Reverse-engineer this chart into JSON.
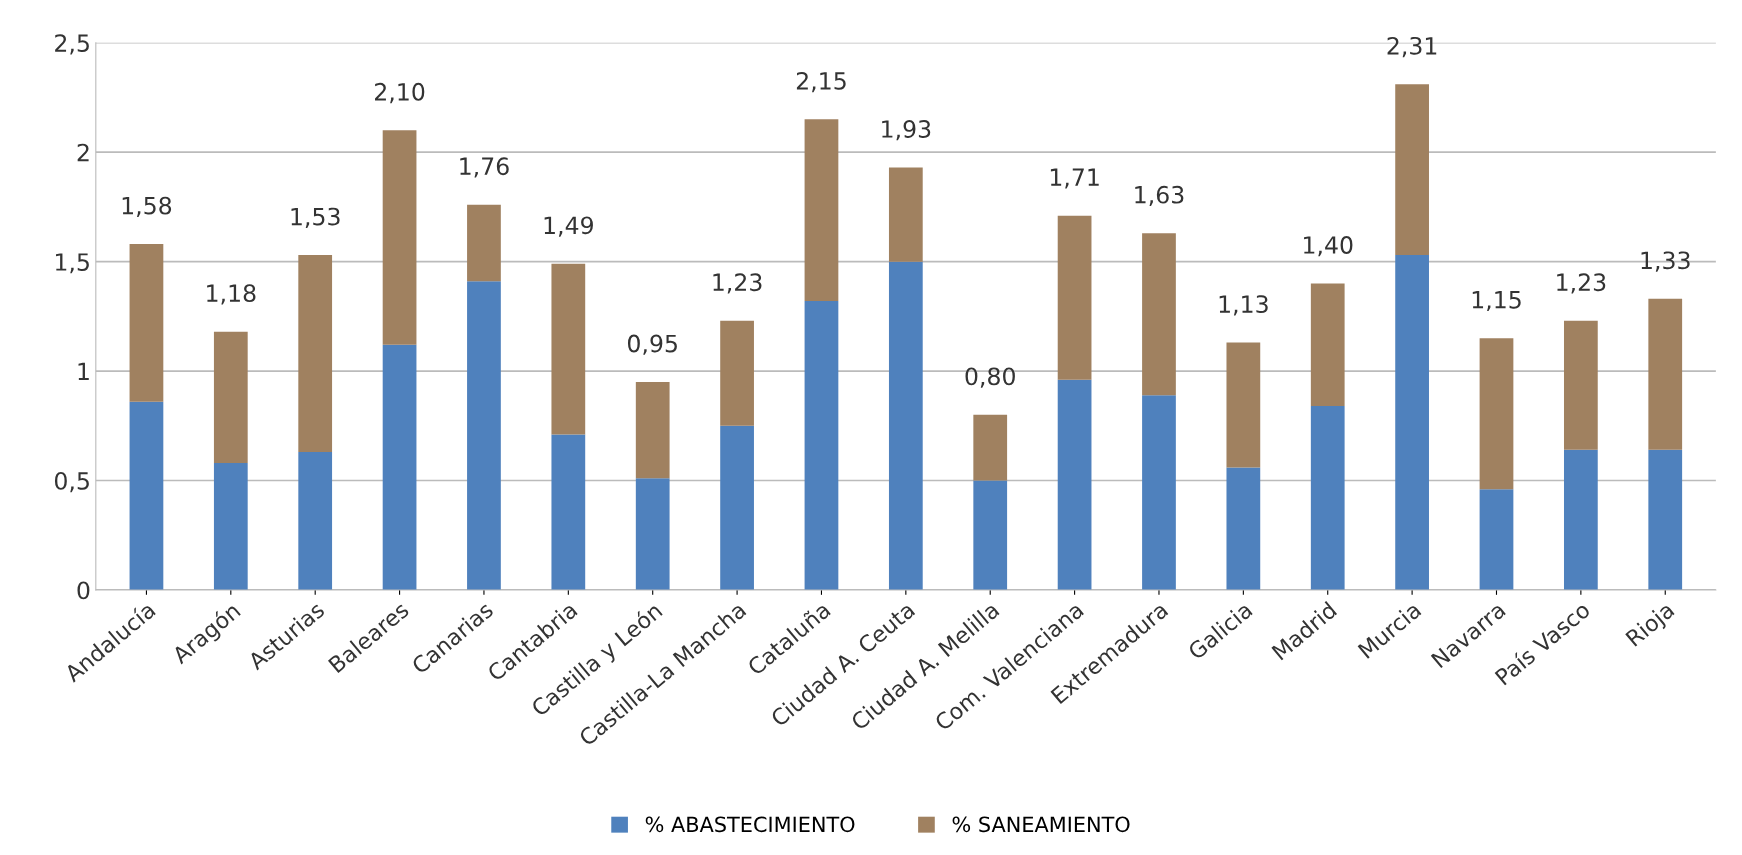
{
  "chart_data": {
    "type": "bar",
    "stacked": true,
    "categories": [
      "Andalucía",
      "Aragón",
      "Asturias",
      "Baleares",
      "Canarias",
      "Cantabria",
      "Castilla y León",
      "Castilla-La Mancha",
      "Cataluña",
      "Ciudad A. Ceuta",
      "Ciudad A. Melilla",
      "Com. Valenciana",
      "Extremadura",
      "Galicia",
      "Madrid",
      "Murcia",
      "Navarra",
      "País Vasco",
      "Rioja"
    ],
    "series": [
      {
        "name": "% ABASTECIMIENTO",
        "color": "#4f81bd",
        "values": [
          0.86,
          0.58,
          0.63,
          1.12,
          1.41,
          0.71,
          0.51,
          0.75,
          1.32,
          1.5,
          0.5,
          0.96,
          0.89,
          0.56,
          0.84,
          1.53,
          0.46,
          0.64,
          0.64
        ]
      },
      {
        "name": "% SANEAMIENTO",
        "color": "#a08160",
        "values": [
          0.72,
          0.6,
          0.9,
          0.98,
          0.35,
          0.78,
          0.44,
          0.48,
          0.83,
          0.43,
          0.3,
          0.75,
          0.74,
          0.57,
          0.56,
          0.78,
          0.69,
          0.59,
          0.69
        ]
      }
    ],
    "totals": [
      "1,58",
      "1,18",
      "1,53",
      "2,10",
      "1,76",
      "1,49",
      "0,95",
      "1,23",
      "2,15",
      "1,93",
      "0,80",
      "1,71",
      "1,63",
      "1,13",
      "1,40",
      "2,31",
      "1,15",
      "1,23",
      "1,33"
    ],
    "ylim": [
      0,
      2.5
    ],
    "yticks": [
      0,
      {
        "value": 0.5,
        "label": "0,5"
      },
      1,
      {
        "value": 1.5,
        "label": "1,5"
      },
      2,
      {
        "value": 2.5,
        "label": "2,5"
      }
    ],
    "grid": "y",
    "legend": "bottom"
  }
}
